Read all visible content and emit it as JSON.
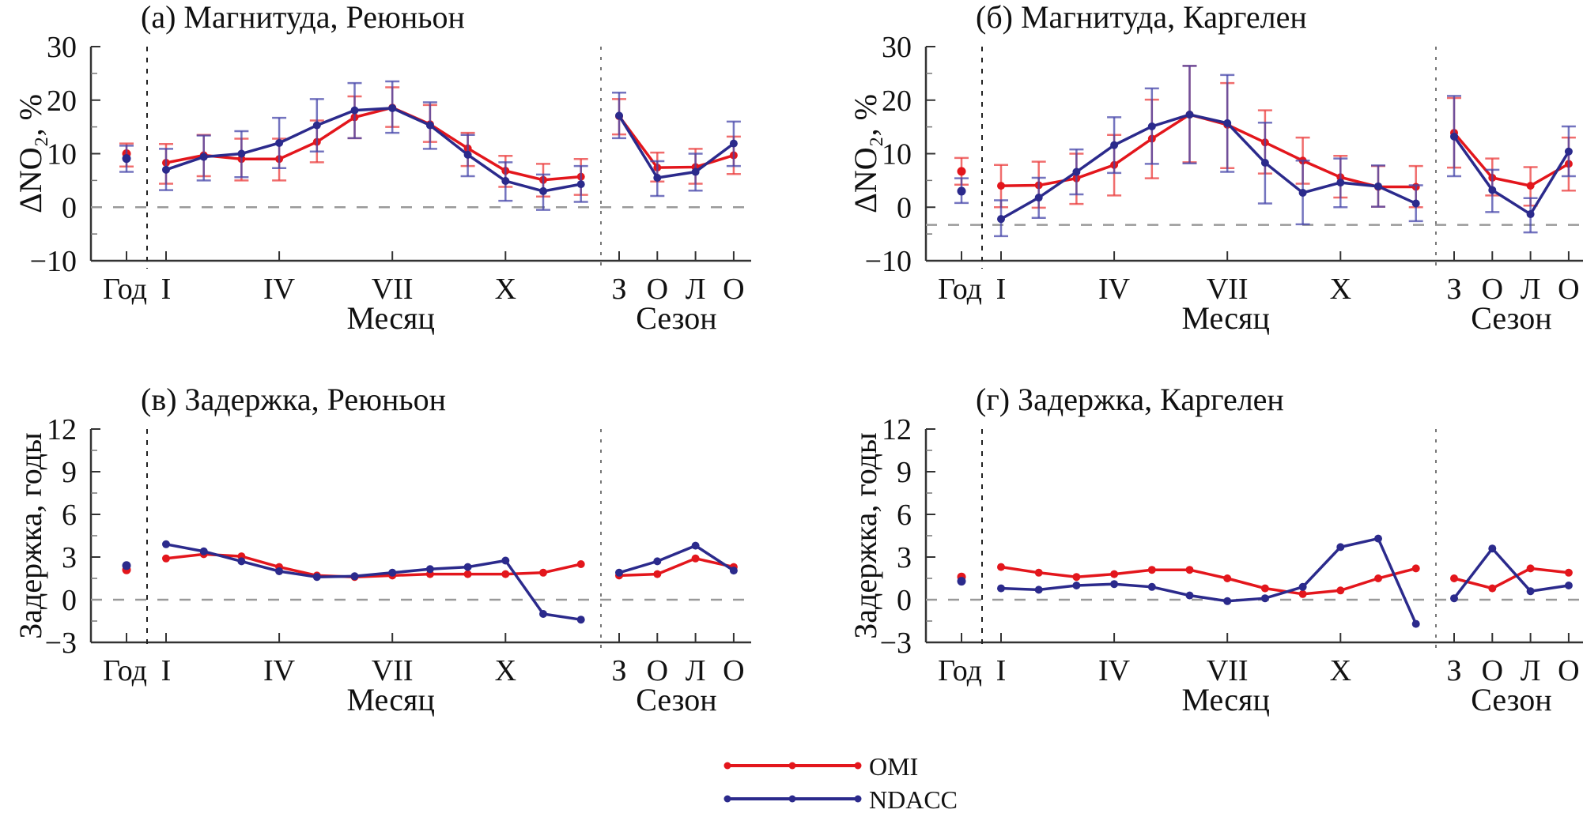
{
  "chart_data": [
    {
      "type": "line",
      "title": "(а) Магнитуда, Реюньон",
      "ylabel": "ΔNO₂, %",
      "ylim": [
        -10,
        30
      ],
      "yticks": [
        "30",
        "20",
        "10",
        "0",
        "−10"
      ],
      "ytick_values": [
        30,
        20,
        10,
        0,
        -10
      ],
      "hline": 0,
      "xtick_labels": {
        "year": "Год",
        "months": [
          "I",
          "IV",
          "VII",
          "X"
        ],
        "seasons": [
          "З",
          "О",
          "Л",
          "О"
        ]
      },
      "xlabel_months": "Месяц",
      "xlabel_seasons": "Сезон",
      "series": [
        {
          "name": "OMI",
          "year": 10.0,
          "year_err": [
            7.6,
            11.9
          ],
          "months": [
            8.3,
            9.7,
            9.0,
            9.0,
            12.2,
            16.8,
            18.6,
            15.5,
            11.0,
            6.8,
            5.1,
            5.7
          ],
          "months_low": [
            4.4,
            5.8,
            5.0,
            5.0,
            8.4,
            12.9,
            15.0,
            12.2,
            7.7,
            3.8,
            2.0,
            2.3
          ],
          "months_high": [
            11.8,
            13.5,
            12.8,
            12.8,
            16.2,
            20.7,
            22.4,
            19.1,
            13.9,
            9.6,
            8.1,
            9.0
          ],
          "seasons": [
            17.0,
            7.4,
            7.5,
            9.7
          ],
          "seasons_low": [
            13.6,
            4.8,
            4.4,
            6.2
          ],
          "seasons_high": [
            20.2,
            10.2,
            10.9,
            13.2
          ]
        },
        {
          "name": "NDACC",
          "year": 9.1,
          "year_err": [
            6.6,
            11.5
          ],
          "months": [
            7.0,
            9.4,
            10.0,
            12.0,
            15.3,
            18.1,
            18.5,
            15.3,
            9.8,
            4.9,
            3.0,
            4.3
          ],
          "months_low": [
            3.2,
            5.0,
            5.6,
            7.3,
            10.4,
            12.9,
            13.9,
            10.9,
            5.8,
            1.2,
            -0.5,
            1.0
          ],
          "months_high": [
            10.9,
            13.4,
            14.2,
            16.7,
            20.2,
            23.2,
            23.5,
            19.6,
            13.5,
            8.4,
            6.1,
            7.7
          ],
          "seasons": [
            17.1,
            5.5,
            6.6,
            11.9
          ],
          "seasons_low": [
            12.9,
            2.1,
            3.1,
            7.7
          ],
          "seasons_high": [
            21.4,
            8.6,
            10.0,
            16.0
          ]
        }
      ]
    },
    {
      "type": "line",
      "title": "(б) Магнитуда, Каргелен",
      "ylabel": "ΔNO₂, %",
      "ylim": [
        -10,
        30
      ],
      "yticks": [
        "30",
        "20",
        "10",
        "0",
        "−10"
      ],
      "ytick_values": [
        30,
        20,
        10,
        0,
        -10
      ],
      "hline": -3.3,
      "xtick_labels": {
        "year": "Год",
        "months": [
          "I",
          "IV",
          "VII",
          "X"
        ],
        "seasons": [
          "З",
          "О",
          "Л",
          "О"
        ]
      },
      "xlabel_months": "Месяц",
      "xlabel_seasons": "Сезон",
      "series": [
        {
          "name": "OMI",
          "year": 6.7,
          "year_err": [
            4.2,
            9.2
          ],
          "months": [
            4.0,
            4.1,
            5.4,
            7.9,
            12.8,
            17.3,
            15.4,
            12.1,
            8.7,
            5.6,
            3.8,
            3.8
          ],
          "months_low": [
            0.0,
            -0.1,
            0.6,
            2.2,
            5.4,
            8.4,
            7.3,
            6.3,
            4.4,
            1.8,
            0.1,
            0.0
          ],
          "months_high": [
            7.9,
            8.5,
            10.0,
            13.5,
            20.1,
            26.4,
            23.2,
            18.1,
            13.0,
            9.6,
            7.7,
            7.7
          ],
          "seasons": [
            13.9,
            5.5,
            4.0,
            8.1
          ],
          "seasons_low": [
            7.4,
            2.2,
            0.3,
            3.1
          ],
          "seasons_high": [
            20.4,
            9.1,
            7.5,
            13.0
          ]
        },
        {
          "name": "NDACC",
          "year": 3.0,
          "year_err": [
            0.8,
            5.4
          ],
          "months": [
            -2.2,
            1.8,
            6.6,
            11.6,
            15.1,
            17.3,
            15.7,
            8.3,
            2.7,
            4.6,
            3.9,
            0.7
          ],
          "months_low": [
            -5.4,
            -2.0,
            2.4,
            6.4,
            8.1,
            8.2,
            6.6,
            0.7,
            -3.2,
            0.0,
            0.1,
            -2.6
          ],
          "months_high": [
            1.3,
            5.5,
            10.8,
            16.8,
            22.2,
            26.4,
            24.7,
            15.8,
            8.7,
            9.1,
            7.8,
            4.1
          ],
          "seasons": [
            13.2,
            3.2,
            -1.3,
            10.4
          ],
          "seasons_low": [
            5.8,
            -0.9,
            -4.7,
            5.8
          ],
          "seasons_high": [
            20.8,
            7.0,
            1.7,
            15.1
          ]
        }
      ]
    },
    {
      "type": "line",
      "title": "(в) Задержка, Реюньон",
      "ylabel": "Задержка, годы",
      "ylim": [
        -3,
        12
      ],
      "yticks": [
        "12",
        "9",
        "6",
        "3",
        "0",
        "−3"
      ],
      "ytick_values": [
        12,
        9,
        6,
        3,
        0,
        -3
      ],
      "hline": 0,
      "xtick_labels": {
        "year": "Год",
        "months": [
          "I",
          "IV",
          "VII",
          "X"
        ],
        "seasons": [
          "З",
          "О",
          "Л",
          "О"
        ]
      },
      "xlabel_months": "Месяц",
      "xlabel_seasons": "Сезон",
      "series": [
        {
          "name": "OMI",
          "year": 2.1,
          "months": [
            2.9,
            3.2,
            3.05,
            2.3,
            1.7,
            1.6,
            1.7,
            1.8,
            1.8,
            1.8,
            1.9,
            2.5
          ],
          "seasons": [
            1.7,
            1.8,
            2.9,
            2.3
          ]
        },
        {
          "name": "NDACC",
          "year": 2.4,
          "months": [
            3.9,
            3.4,
            2.7,
            2.0,
            1.6,
            1.65,
            1.9,
            2.15,
            2.3,
            2.75,
            -1.0,
            -1.4
          ],
          "seasons": [
            1.9,
            2.7,
            3.8,
            2.05
          ]
        }
      ]
    },
    {
      "type": "line",
      "title": "(г) Задержка, Каргелен",
      "ylabel": "Задержка, годы",
      "ylim": [
        -3,
        12
      ],
      "yticks": [
        "12",
        "9",
        "6",
        "3",
        "0",
        "−3"
      ],
      "ytick_values": [
        12,
        9,
        6,
        3,
        0,
        -3
      ],
      "hline": 0,
      "xtick_labels": {
        "year": "Год",
        "months": [
          "I",
          "IV",
          "VII",
          "X"
        ],
        "seasons": [
          "З",
          "О",
          "Л",
          "О"
        ]
      },
      "xlabel_months": "Месяц",
      "xlabel_seasons": "Сезон",
      "series": [
        {
          "name": "OMI",
          "year": 1.6,
          "months": [
            2.3,
            1.9,
            1.6,
            1.8,
            2.1,
            2.1,
            1.5,
            0.8,
            0.4,
            0.65,
            1.5,
            2.2
          ],
          "seasons": [
            1.5,
            0.8,
            2.2,
            1.9
          ]
        },
        {
          "name": "NDACC",
          "year": 1.3,
          "months": [
            0.8,
            0.7,
            1.0,
            1.1,
            0.9,
            0.3,
            -0.1,
            0.1,
            0.9,
            3.7,
            4.3,
            -1.7
          ],
          "seasons": [
            0.1,
            3.6,
            0.6,
            1.0
          ]
        }
      ]
    }
  ],
  "legend": {
    "placement": "bottom-center",
    "items": [
      {
        "label": "OMI",
        "color": "#e3161c"
      },
      {
        "label": "NDACC",
        "color": "#2b2a8c"
      }
    ]
  }
}
